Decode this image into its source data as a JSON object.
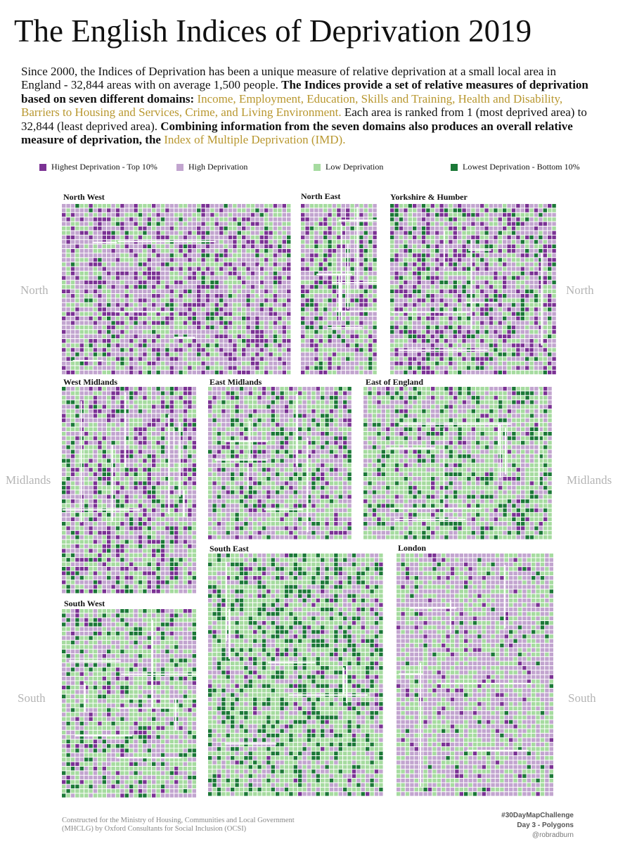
{
  "title": "The English Indices of Deprivation 2019",
  "intro": {
    "part1": "Since 2000, the Indices of Deprivation has been a unique measure of relative deprivation at a small local area in England - 32,844 areas with on average 1,500 people.",
    "part2": "The Indices provide a set of relative measures of deprivation based on seven different domains:",
    "domains": "Income, Employment, Education, Skills and Training, Health and Disability, Barriers to Housing and Services, Crime, and Living Environment.",
    "part3": "Each area is ranked from 1 (most deprived area) to 32,844 (least deprived area).",
    "part4": "Combining information from the seven domains also produces an overall relative measure of deprivation, the",
    "imd": "Index of Multiple Deprivation (IMD)."
  },
  "legend": [
    {
      "label": "Highest Deprivation - Top 10%",
      "color": "#7b3294"
    },
    {
      "label": "High Deprivation",
      "color": "#c2a5cf"
    },
    {
      "label": "Low Deprivation",
      "color": "#a6dba0"
    },
    {
      "label": "Lowest Deprivation - Bottom 10%",
      "color": "#1b7837"
    }
  ],
  "regions": [
    {
      "name": "North West",
      "mix": [
        0.22,
        0.45,
        0.27,
        0.06
      ]
    },
    {
      "name": "North East",
      "mix": [
        0.18,
        0.42,
        0.32,
        0.08
      ]
    },
    {
      "name": "Yorkshire & Humber",
      "mix": [
        0.2,
        0.4,
        0.3,
        0.1
      ]
    },
    {
      "name": "West Midlands",
      "mix": [
        0.18,
        0.38,
        0.34,
        0.1
      ]
    },
    {
      "name": "East Midlands",
      "mix": [
        0.1,
        0.38,
        0.4,
        0.12
      ]
    },
    {
      "name": "East of England",
      "mix": [
        0.06,
        0.3,
        0.48,
        0.16
      ]
    },
    {
      "name": "South East",
      "mix": [
        0.03,
        0.24,
        0.5,
        0.23
      ]
    },
    {
      "name": "London",
      "mix": [
        0.05,
        0.55,
        0.36,
        0.04
      ]
    },
    {
      "name": "South West",
      "mix": [
        0.05,
        0.38,
        0.45,
        0.12
      ]
    }
  ],
  "side_labels": [
    "North",
    "North",
    "Midlands",
    "Midlands",
    "South",
    "South"
  ],
  "footer": {
    "credit": "Constructed for the Ministry of Housing, Communities and Local Government (MHCLG) by Oxford Consultants for Social Inclusion (OCSI)",
    "challenge": "#30DayMapChallenge",
    "day": "Day 3 - Polygons",
    "handle": "@robradburn"
  }
}
